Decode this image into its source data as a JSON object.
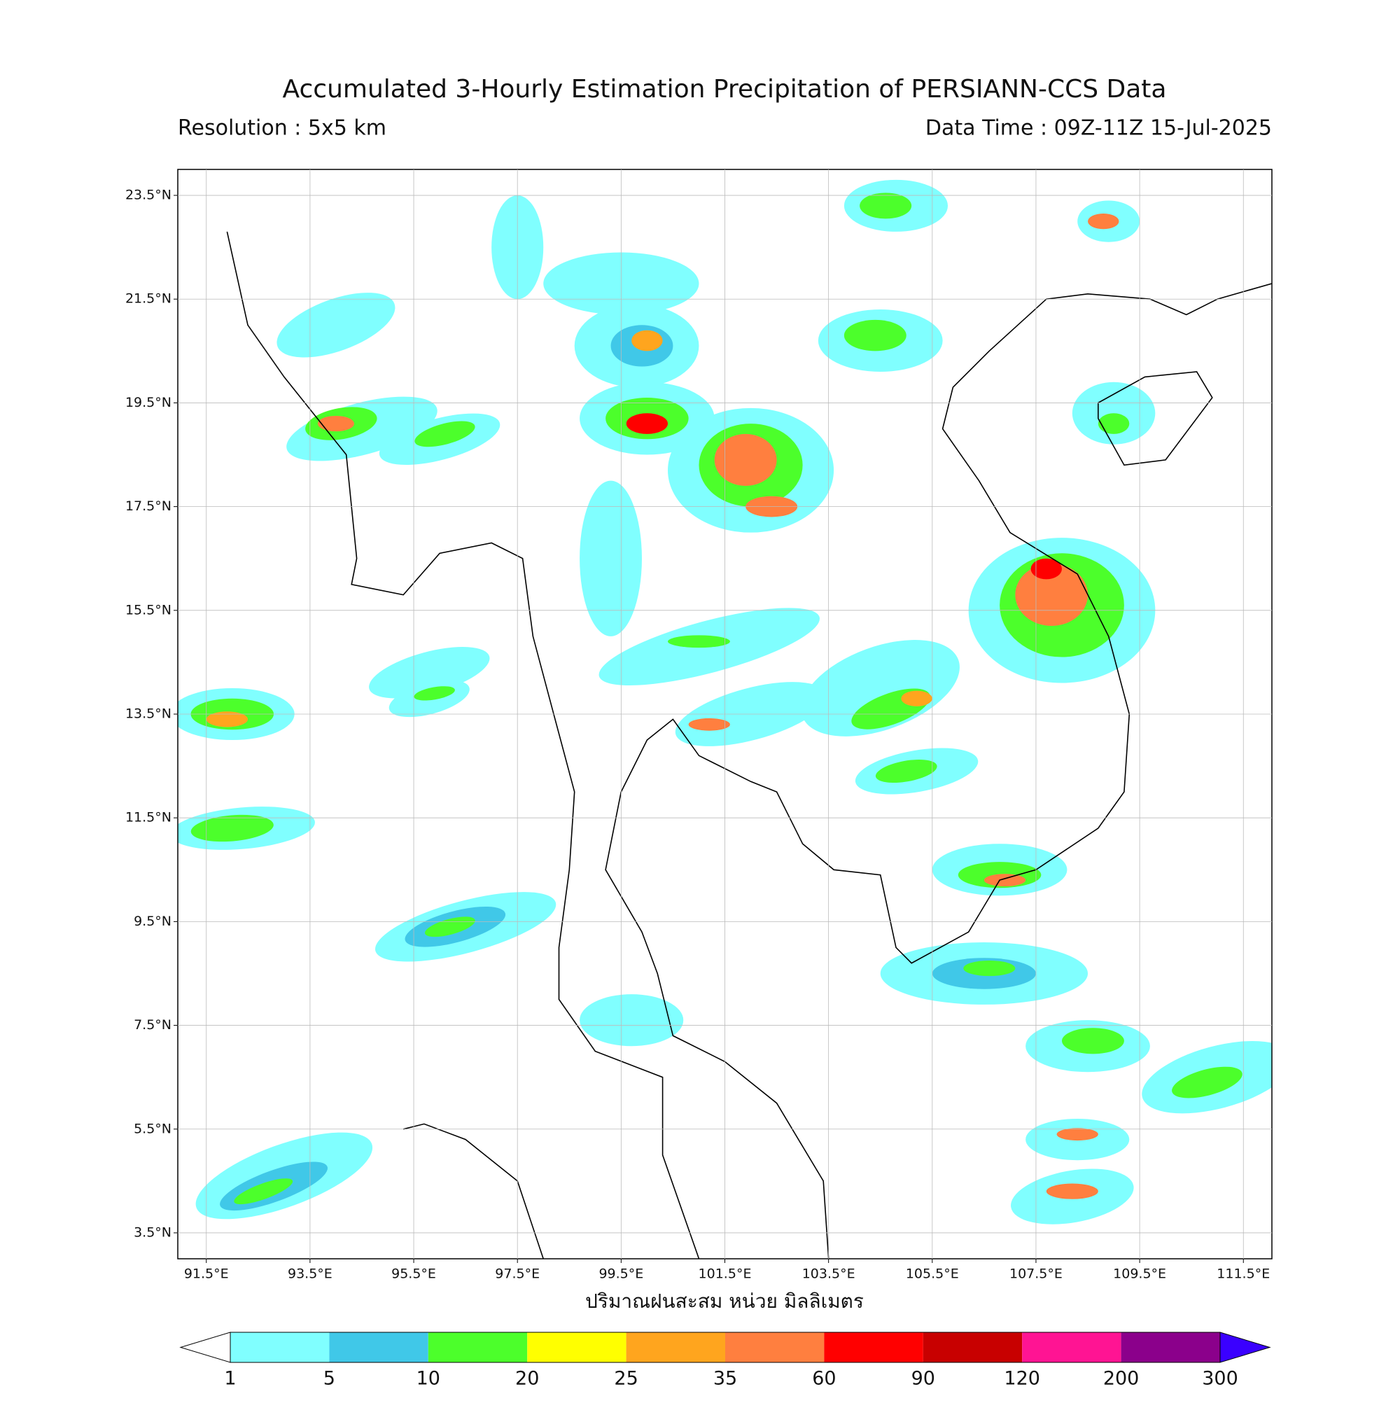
{
  "map": {
    "title": "Accumulated 3-Hourly Estimation Precipitation of PERSIANN-CCS Data",
    "subtitle_left": "Resolution : 5x5 km",
    "subtitle_right": "Data Time : 09Z-11Z 15-Jul-2025",
    "xlabel": "ปริมาณฝนสะสม หน่วย มิลลิเมตร",
    "xlim": [
      90.95,
      112.05
    ],
    "ylim": [
      3.0,
      24.0
    ],
    "xticks": [
      {
        "value": 91.5,
        "label": "91.5°E"
      },
      {
        "value": 93.5,
        "label": "93.5°E"
      },
      {
        "value": 95.5,
        "label": "95.5°E"
      },
      {
        "value": 97.5,
        "label": "97.5°E"
      },
      {
        "value": 99.5,
        "label": "99.5°E"
      },
      {
        "value": 101.5,
        "label": "101.5°E"
      },
      {
        "value": 103.5,
        "label": "103.5°E"
      },
      {
        "value": 105.5,
        "label": "105.5°E"
      },
      {
        "value": 107.5,
        "label": "107.5°E"
      },
      {
        "value": 109.5,
        "label": "109.5°E"
      },
      {
        "value": 111.5,
        "label": "111.5°E"
      }
    ],
    "yticks": [
      {
        "value": 3.5,
        "label": "3.5°N"
      },
      {
        "value": 5.5,
        "label": "5.5°N"
      },
      {
        "value": 7.5,
        "label": "7.5°N"
      },
      {
        "value": 9.5,
        "label": "9.5°N"
      },
      {
        "value": 11.5,
        "label": "11.5°N"
      },
      {
        "value": 13.5,
        "label": "13.5°N"
      },
      {
        "value": 15.5,
        "label": "15.5°N"
      },
      {
        "value": 17.5,
        "label": "17.5°N"
      },
      {
        "value": 19.5,
        "label": "19.5°N"
      },
      {
        "value": 21.5,
        "label": "21.5°N"
      },
      {
        "value": 23.5,
        "label": "23.5°N"
      }
    ],
    "grid": true,
    "colorbar": {
      "levels": [
        1,
        5,
        10,
        20,
        25,
        35,
        60,
        90,
        120,
        200,
        300
      ],
      "colors": [
        "#80ffff",
        "#40c8e8",
        "#4cff2b",
        "#ffff00",
        "#ffa51e",
        "#ff7f3f",
        "#ff0000",
        "#c80000",
        "#ff1493",
        "#8b008b"
      ],
      "under_color": "#ffffff",
      "over_color": "#3a00ff"
    }
  }
}
